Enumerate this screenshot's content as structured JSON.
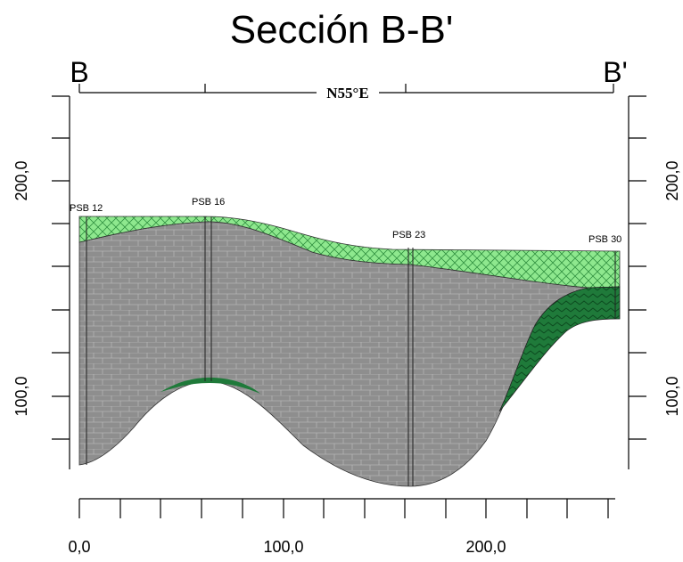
{
  "title": "Sección B-B'",
  "section_ends": {
    "start": "B",
    "end": "B'"
  },
  "bearing": "N55°E",
  "left_axis": {
    "labels": [
      "200,0",
      "100,0"
    ]
  },
  "right_axis": {
    "labels": [
      "200,0",
      "100,0"
    ]
  },
  "bottom_axis": {
    "labels": [
      "0,0",
      "100,0",
      "200,0"
    ]
  },
  "boreholes": [
    {
      "label": "PSB 12"
    },
    {
      "label": "PSB 16"
    },
    {
      "label": "PSB 23"
    },
    {
      "label": "PSB 30"
    }
  ]
}
